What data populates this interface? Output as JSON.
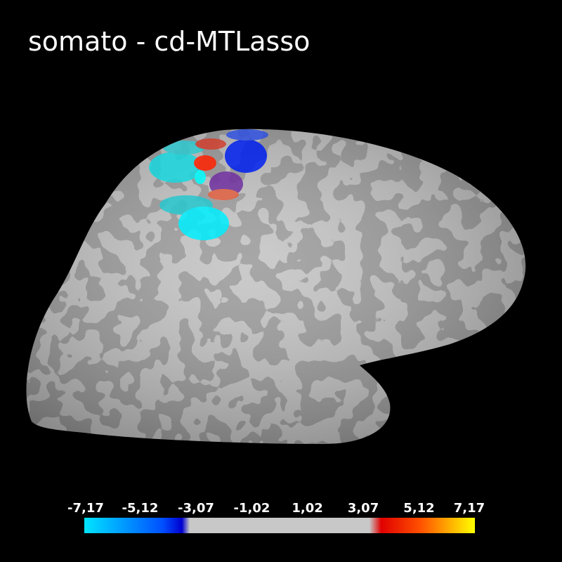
{
  "header": {
    "title": "somato - cd-MTLasso"
  },
  "colorbar": {
    "lim": [
      -7.17,
      7.17
    ],
    "ticks": [
      {
        "value": -7.17,
        "label": "-7,17"
      },
      {
        "value": -5.12,
        "label": "-5,12"
      },
      {
        "value": -3.07,
        "label": "-3,07"
      },
      {
        "value": -1.02,
        "label": "-1,02"
      },
      {
        "value": 1.02,
        "label": "1,02"
      },
      {
        "value": 3.07,
        "label": "3,07"
      },
      {
        "value": 5.12,
        "label": "5,12"
      },
      {
        "value": 7.17,
        "label": "7,17"
      }
    ]
  }
}
